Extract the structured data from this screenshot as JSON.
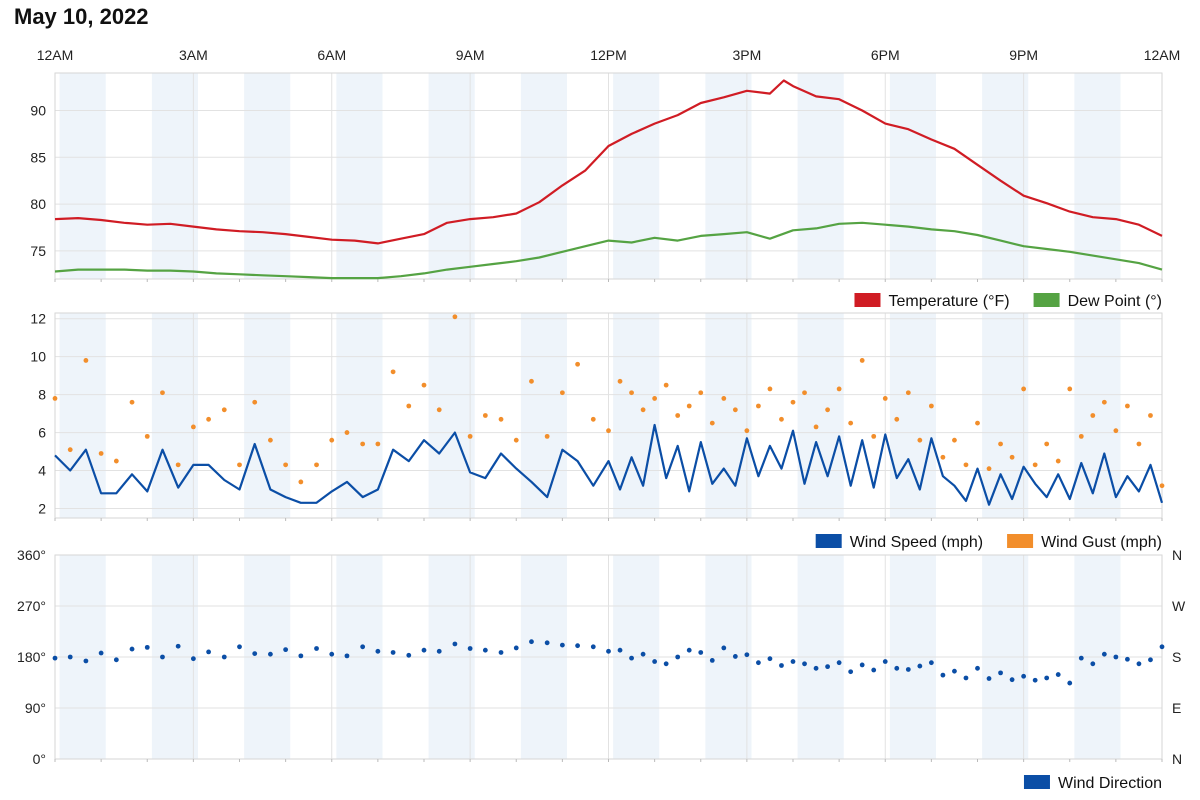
{
  "title": "May 10, 2022",
  "colors": {
    "temperature": "#d01c24",
    "dew_point": "#55a343",
    "wind_speed": "#0b4ea6",
    "wind_gust": "#f28e2b",
    "wind_direction": "#0b4ea6",
    "band": "#eef4fa",
    "grid": "#e2e2e2"
  },
  "time_axis": {
    "labels": [
      "12AM",
      "3AM",
      "6AM",
      "9AM",
      "12PM",
      "3PM",
      "6PM",
      "9PM",
      "12AM"
    ],
    "label_hours": [
      0,
      3,
      6,
      9,
      12,
      15,
      18,
      21,
      24
    ]
  },
  "chart_data": [
    {
      "type": "line",
      "ylim": [
        72,
        94
      ],
      "y_ticks": [
        "75",
        "80",
        "85",
        "90"
      ],
      "y_tick_values": [
        75,
        80,
        85,
        90
      ],
      "series": [
        {
          "name": "Temperature (°F)",
          "x_hours": [
            0,
            0.5,
            1,
            1.5,
            2,
            2.5,
            3,
            3.5,
            4,
            4.5,
            5,
            5.5,
            6,
            6.5,
            7,
            7.5,
            8,
            8.5,
            9,
            9.5,
            10,
            10.5,
            11,
            11.5,
            12,
            12.5,
            13,
            13.5,
            14,
            14.5,
            15,
            15.5,
            15.8,
            16,
            16.5,
            17,
            17.5,
            18,
            18.5,
            19,
            19.5,
            20,
            20.5,
            21,
            21.5,
            22,
            22.5,
            23,
            23.5,
            24
          ],
          "values": [
            78.4,
            78.5,
            78.3,
            78,
            77.8,
            77.9,
            77.6,
            77.3,
            77.1,
            77,
            76.8,
            76.5,
            76.2,
            76.1,
            75.8,
            76.3,
            76.8,
            78,
            78.4,
            78.6,
            79,
            80.2,
            82,
            83.6,
            86.2,
            87.5,
            88.6,
            89.5,
            90.8,
            91.4,
            92.1,
            91.8,
            93.2,
            92.6,
            91.5,
            91.2,
            90,
            88.6,
            88,
            86.9,
            85.9,
            84.2,
            82.5,
            80.9,
            80.1,
            79.2,
            78.6,
            78.4,
            77.8,
            76.6
          ]
        },
        {
          "name": "Dew Point (°)",
          "x_hours": [
            0,
            0.5,
            1,
            1.5,
            2,
            2.5,
            3,
            3.5,
            4,
            4.5,
            5,
            5.5,
            6,
            6.5,
            7,
            7.5,
            8,
            8.5,
            9,
            9.5,
            10,
            10.5,
            11,
            11.5,
            12,
            12.5,
            13,
            13.5,
            14,
            14.5,
            15,
            15.5,
            16,
            16.5,
            17,
            17.5,
            18,
            18.5,
            19,
            19.5,
            20,
            20.5,
            21,
            21.5,
            22,
            22.5,
            23,
            23.5,
            24
          ],
          "values": [
            72.8,
            73,
            73,
            73,
            72.9,
            72.9,
            72.8,
            72.6,
            72.5,
            72.4,
            72.3,
            72.2,
            72.1,
            72.1,
            72.1,
            72.3,
            72.6,
            73,
            73.3,
            73.6,
            73.9,
            74.3,
            74.9,
            75.5,
            76.1,
            75.9,
            76.4,
            76.1,
            76.6,
            76.8,
            77,
            76.3,
            77.2,
            77.4,
            77.9,
            78,
            77.8,
            77.6,
            77.3,
            77.1,
            76.7,
            76.1,
            75.5,
            75.2,
            74.9,
            74.5,
            74.1,
            73.7,
            73
          ]
        }
      ],
      "legend": [
        "Temperature (°F)",
        "Dew Point (°)"
      ],
      "legend_position": "bottom-right"
    },
    {
      "type": "line",
      "ylim": [
        1.5,
        12.3
      ],
      "y_ticks": [
        "2",
        "4",
        "6",
        "8",
        "10",
        "12"
      ],
      "y_tick_values": [
        2,
        4,
        6,
        8,
        10,
        12
      ],
      "series": [
        {
          "name": "Wind Speed (mph)",
          "x_hours": [
            0,
            0.33,
            0.67,
            1,
            1.33,
            1.67,
            2,
            2.33,
            2.67,
            3,
            3.33,
            3.67,
            4,
            4.33,
            4.67,
            5,
            5.33,
            5.67,
            6,
            6.33,
            6.67,
            7,
            7.33,
            7.67,
            8,
            8.33,
            8.67,
            9,
            9.33,
            9.67,
            10,
            10.33,
            10.67,
            11,
            11.33,
            11.67,
            12,
            12.25,
            12.5,
            12.75,
            13,
            13.25,
            13.5,
            13.75,
            14,
            14.25,
            14.5,
            14.75,
            15,
            15.25,
            15.5,
            15.75,
            16,
            16.25,
            16.5,
            16.75,
            17,
            17.25,
            17.5,
            17.75,
            18,
            18.25,
            18.5,
            18.75,
            19,
            19.25,
            19.5,
            19.75,
            20,
            20.25,
            20.5,
            20.75,
            21,
            21.25,
            21.5,
            21.75,
            22,
            22.25,
            22.5,
            22.75,
            23,
            23.25,
            23.5,
            23.75,
            24
          ],
          "values": [
            4.8,
            4,
            5.1,
            2.8,
            2.8,
            3.8,
            2.9,
            5.1,
            3.1,
            4.3,
            4.3,
            3.5,
            3,
            5.4,
            3,
            2.6,
            2.3,
            2.3,
            2.9,
            3.4,
            2.6,
            3,
            5.1,
            4.5,
            5.6,
            4.9,
            6,
            3.9,
            3.6,
            4.9,
            4.1,
            3.4,
            2.6,
            5.1,
            4.5,
            3.2,
            4.5,
            3,
            4.7,
            3.2,
            6.4,
            3.6,
            5.3,
            2.9,
            5.5,
            3.3,
            4.1,
            3.2,
            5.7,
            3.7,
            5.3,
            4.1,
            6.1,
            3.3,
            5.5,
            3.7,
            5.8,
            3.2,
            5.6,
            3.1,
            5.9,
            3.6,
            4.6,
            3,
            5.7,
            3.7,
            3.2,
            2.4,
            4.1,
            2.2,
            3.8,
            2.5,
            4.2,
            3.3,
            2.6,
            3.8,
            2.5,
            4.4,
            2.8,
            4.9,
            2.6,
            3.7,
            2.9,
            4.3,
            2.3
          ]
        },
        {
          "name": "Wind Gust (mph)",
          "type": "scatter",
          "x_hours": [
            0,
            0.33,
            0.67,
            1,
            1.33,
            1.67,
            2,
            2.33,
            2.67,
            3,
            3.33,
            3.67,
            4,
            4.33,
            4.67,
            5,
            5.33,
            5.67,
            6,
            6.33,
            6.67,
            7,
            7.33,
            7.67,
            8,
            8.33,
            8.67,
            9,
            9.33,
            9.67,
            10,
            10.33,
            10.67,
            11,
            11.33,
            11.67,
            12,
            12.25,
            12.5,
            12.75,
            13,
            13.25,
            13.5,
            13.75,
            14,
            14.25,
            14.5,
            14.75,
            15,
            15.25,
            15.5,
            15.75,
            16,
            16.25,
            16.5,
            16.75,
            17,
            17.25,
            17.5,
            17.75,
            18,
            18.25,
            18.5,
            18.75,
            19,
            19.25,
            19.5,
            19.75,
            20,
            20.25,
            20.5,
            20.75,
            21,
            21.25,
            21.5,
            21.75,
            22,
            22.25,
            22.5,
            22.75,
            23,
            23.25,
            23.5,
            23.75,
            24
          ],
          "values": [
            7.8,
            5.1,
            9.8,
            4.9,
            4.5,
            7.6,
            5.8,
            8.1,
            4.3,
            6.3,
            6.7,
            7.2,
            4.3,
            7.6,
            5.6,
            4.3,
            3.4,
            4.3,
            5.6,
            6,
            5.4,
            5.4,
            9.2,
            7.4,
            8.5,
            7.2,
            12.1,
            5.8,
            6.9,
            6.7,
            5.6,
            8.7,
            5.8,
            8.1,
            9.6,
            6.7,
            6.1,
            8.7,
            8.1,
            7.2,
            7.8,
            8.5,
            6.9,
            7.4,
            8.1,
            6.5,
            7.8,
            7.2,
            6.1,
            7.4,
            8.3,
            6.7,
            7.6,
            8.1,
            6.3,
            7.2,
            8.3,
            6.5,
            9.8,
            5.8,
            7.8,
            6.7,
            8.1,
            5.6,
            7.4,
            4.7,
            5.6,
            4.3,
            6.5,
            4.1,
            5.4,
            4.7,
            8.3,
            4.3,
            5.4,
            4.5,
            8.3,
            5.8,
            6.9,
            7.6,
            6.1,
            7.4,
            5.4,
            6.9,
            3.2
          ]
        }
      ],
      "legend": [
        "Wind Speed (mph)",
        "Wind Gust (mph)"
      ],
      "legend_position": "bottom-right"
    },
    {
      "type": "scatter",
      "ylim": [
        0,
        360
      ],
      "y_ticks": [
        "0°",
        "90°",
        "180°",
        "270°",
        "360°"
      ],
      "y_tick_values": [
        0,
        90,
        180,
        270,
        360
      ],
      "right_ticks": [
        "N",
        "E",
        "S",
        "W",
        "N"
      ],
      "series": [
        {
          "name": "Wind Direction",
          "x_hours": [
            0,
            0.33,
            0.67,
            1,
            1.33,
            1.67,
            2,
            2.33,
            2.67,
            3,
            3.33,
            3.67,
            4,
            4.33,
            4.67,
            5,
            5.33,
            5.67,
            6,
            6.33,
            6.67,
            7,
            7.33,
            7.67,
            8,
            8.33,
            8.67,
            9,
            9.33,
            9.67,
            10,
            10.33,
            10.67,
            11,
            11.33,
            11.67,
            12,
            12.25,
            12.5,
            12.75,
            13,
            13.25,
            13.5,
            13.75,
            14,
            14.25,
            14.5,
            14.75,
            15,
            15.25,
            15.5,
            15.75,
            16,
            16.25,
            16.5,
            16.75,
            17,
            17.25,
            17.5,
            17.75,
            18,
            18.25,
            18.5,
            18.75,
            19,
            19.25,
            19.5,
            19.75,
            20,
            20.25,
            20.5,
            20.75,
            21,
            21.25,
            21.5,
            21.75,
            22,
            22.25,
            22.5,
            22.75,
            23,
            23.25,
            23.5,
            23.75,
            24
          ],
          "values": [
            178,
            180,
            173,
            187,
            175,
            194,
            197,
            180,
            199,
            177,
            189,
            180,
            198,
            186,
            185,
            193,
            182,
            195,
            185,
            182,
            198,
            190,
            188,
            183,
            192,
            190,
            203,
            195,
            192,
            188,
            196,
            207,
            205,
            201,
            200,
            198,
            190,
            192,
            178,
            185,
            172,
            168,
            180,
            192,
            188,
            174,
            196,
            181,
            184,
            170,
            177,
            165,
            172,
            168,
            160,
            163,
            170,
            154,
            166,
            157,
            172,
            160,
            158,
            164,
            170,
            148,
            155,
            143,
            160,
            142,
            152,
            140,
            146,
            139,
            143,
            149,
            134,
            178,
            168,
            185,
            180,
            176,
            168,
            175,
            198
          ]
        }
      ],
      "legend": [
        "Wind Direction"
      ],
      "legend_position": "bottom-right"
    }
  ]
}
